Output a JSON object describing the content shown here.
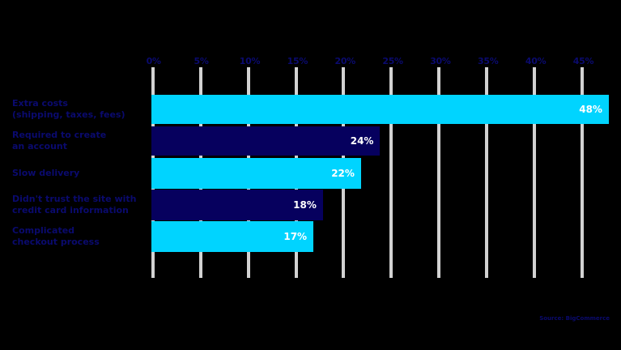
{
  "chart_data": {
    "type": "bar",
    "orientation": "horizontal",
    "title": "",
    "xlabel": "",
    "ylabel": "",
    "categories": [
      "Extra costs (shipping, taxes, fees)",
      "Required to create an account",
      "Slow delivery",
      "Didn't trust the site with credit card information",
      "Complicated checkout process"
    ],
    "category_lines": [
      [
        "Extra costs",
        "(shipping, taxes, fees)"
      ],
      [
        "Required to create",
        "an account"
      ],
      [
        "Slow delivery"
      ],
      [
        "Didn't trust the site with",
        "credit card information"
      ],
      [
        "Complicated",
        "checkout process"
      ]
    ],
    "values": [
      48,
      24,
      22,
      18,
      17
    ],
    "value_labels": [
      "48%",
      "24%",
      "22%",
      "18%",
      "17%"
    ],
    "bar_colors": [
      "#00d4ff",
      "#06005e",
      "#00d4ff",
      "#06005e",
      "#00d4ff"
    ],
    "xlim": [
      0,
      48
    ],
    "ticks": [
      0,
      5,
      10,
      15,
      20,
      25,
      30,
      35,
      40,
      45
    ],
    "tick_labels": [
      "0%",
      "5%",
      "10%",
      "15%",
      "20%",
      "25%",
      "30%",
      "35%",
      "40%",
      "45%"
    ],
    "axis_position": "top",
    "grid": true,
    "legend": null,
    "source": "Source: BigCommerce"
  },
  "colors": {
    "background": "#000000",
    "accent_cyan": "#00d4ff",
    "accent_navy": "#06005e",
    "text": "#0a0a6e",
    "gridline": "#d2d2d2"
  }
}
